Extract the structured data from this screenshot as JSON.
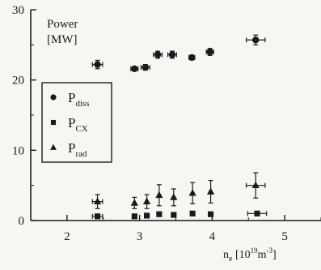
{
  "chart_data": {
    "type": "scatter",
    "title": "",
    "xlabel": {
      "base": "n",
      "sub": "e",
      "bracket_open": " [10",
      "sup": "19",
      "unit": "m",
      "unit_sup": "-3",
      "bracket_close": "]"
    },
    "annotation": [
      "Power",
      "[MW]"
    ],
    "xlim": [
      1.5,
      5.5
    ],
    "ylim": [
      0,
      30
    ],
    "x_ticks": [
      "2",
      "3",
      "4",
      "5"
    ],
    "y_ticks": [
      "0",
      "10",
      "20",
      "30"
    ],
    "x_tick_values": [
      2,
      3,
      4,
      5
    ],
    "y_tick_values": [
      0,
      10,
      20,
      30
    ],
    "series": [
      {
        "name": "P_diss",
        "label_base": "P",
        "label_sub": "diss",
        "marker": "circle",
        "points": [
          {
            "x": 2.42,
            "y": 22.2,
            "xerr": 0.07,
            "yerr": 0.6
          },
          {
            "x": 2.93,
            "y": 21.6,
            "xerr": 0.05,
            "yerr": 0.3
          },
          {
            "x": 3.08,
            "y": 21.8,
            "xerr": 0.06,
            "yerr": 0.4
          },
          {
            "x": 3.25,
            "y": 23.6,
            "xerr": 0.06,
            "yerr": 0.5
          },
          {
            "x": 3.45,
            "y": 23.6,
            "xerr": 0.06,
            "yerr": 0.5
          },
          {
            "x": 3.72,
            "y": 23.2,
            "xerr": 0.04,
            "yerr": 0.3
          },
          {
            "x": 3.97,
            "y": 24.0,
            "xerr": 0.05,
            "yerr": 0.5
          },
          {
            "x": 4.6,
            "y": 25.7,
            "xerr": 0.13,
            "yerr": 0.7
          }
        ]
      },
      {
        "name": "P_CX",
        "label_base": "P",
        "label_sub": "CX",
        "marker": "square",
        "points": [
          {
            "x": 2.42,
            "y": 0.6,
            "xerr": 0.07,
            "yerr": 0.1
          },
          {
            "x": 2.93,
            "y": 0.6,
            "xerr": 0.0,
            "yerr": 0.0
          },
          {
            "x": 3.1,
            "y": 0.7,
            "xerr": 0.0,
            "yerr": 0.0
          },
          {
            "x": 3.27,
            "y": 0.9,
            "xerr": 0.0,
            "yerr": 0.0
          },
          {
            "x": 3.47,
            "y": 0.8,
            "xerr": 0.0,
            "yerr": 0.0
          },
          {
            "x": 3.73,
            "y": 1.0,
            "xerr": 0.0,
            "yerr": 0.0
          },
          {
            "x": 3.98,
            "y": 0.9,
            "xerr": 0.0,
            "yerr": 0.0
          },
          {
            "x": 4.62,
            "y": 1.0,
            "xerr": 0.13,
            "yerr": 0.1
          }
        ]
      },
      {
        "name": "P_rad",
        "label_base": "P",
        "label_sub": "rad",
        "marker": "triangle",
        "points": [
          {
            "x": 2.42,
            "y": 2.7,
            "xerr": 0.07,
            "yerr": 1.0
          },
          {
            "x": 2.93,
            "y": 2.5,
            "xerr": 0.0,
            "yerr": 0.8
          },
          {
            "x": 3.1,
            "y": 2.7,
            "xerr": 0.0,
            "yerr": 1.0
          },
          {
            "x": 3.27,
            "y": 3.6,
            "xerr": 0.0,
            "yerr": 1.5
          },
          {
            "x": 3.47,
            "y": 3.3,
            "xerr": 0.0,
            "yerr": 1.2
          },
          {
            "x": 3.73,
            "y": 3.9,
            "xerr": 0.0,
            "yerr": 1.5
          },
          {
            "x": 3.98,
            "y": 4.1,
            "xerr": 0.0,
            "yerr": 1.6
          },
          {
            "x": 4.6,
            "y": 5.0,
            "xerr": 0.13,
            "yerr": 1.8
          }
        ]
      }
    ],
    "legend": {
      "position": "left"
    },
    "grid": false
  },
  "colors": {
    "ink": "#1a1a1a",
    "background": "#f7f6f3"
  }
}
